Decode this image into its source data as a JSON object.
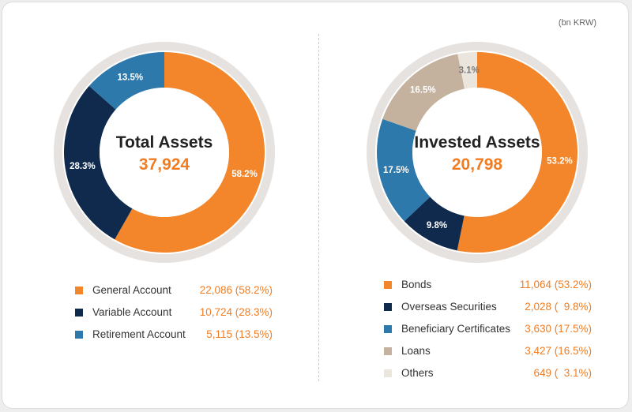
{
  "unit_label": "(bn KRW)",
  "colors": {
    "orange": "#f3862a",
    "navy": "#0f2a4d",
    "blue": "#2e79ac",
    "tan": "#c4b19e",
    "cream": "#ebe6dd",
    "accent_text": "#f07d23"
  },
  "chart_data": [
    {
      "type": "pie",
      "title": "Total Assets",
      "center_value": "37,924",
      "slices": [
        {
          "name": "General Account",
          "value": 22086,
          "pct_label": "58.2%",
          "legend_value": "22,086 (58.2%)",
          "color": "#f3862a"
        },
        {
          "name": "Variable Account",
          "value": 10724,
          "pct_label": "28.3%",
          "legend_value": "10,724 (28.3%)",
          "color": "#0f2a4d"
        },
        {
          "name": "Retirement Account",
          "value": 5115,
          "pct_label": "13.5%",
          "legend_value": "5,115 (13.5%)",
          "color": "#2e79ac"
        }
      ]
    },
    {
      "type": "pie",
      "title": "Invested Assets",
      "center_value": "20,798",
      "slices": [
        {
          "name": "Bonds",
          "value": 11064,
          "pct_label": "53.2%",
          "legend_value": "11,064 (53.2%)",
          "color": "#f3862a"
        },
        {
          "name": "Overseas Securities",
          "value": 2028,
          "pct_label": "9.8%",
          "legend_value": "2,028 (  9.8%)",
          "color": "#0f2a4d"
        },
        {
          "name": "Beneficiary Certificates",
          "value": 3630,
          "pct_label": "17.5%",
          "legend_value": "3,630 (17.5%)",
          "color": "#2e79ac"
        },
        {
          "name": "Loans",
          "value": 3427,
          "pct_label": "16.5%",
          "legend_value": "3,427 (16.5%)",
          "color": "#c4b19e"
        },
        {
          "name": "Others",
          "value": 649,
          "pct_label": "3.1%",
          "legend_value": "649 (  3.1%)",
          "color": "#ebe6dd"
        }
      ]
    }
  ]
}
